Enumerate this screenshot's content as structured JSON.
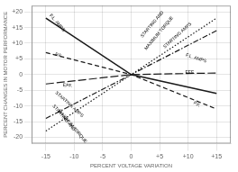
{
  "chart_data": {
    "type": "line",
    "xlabel": "PERCENT VOLTAGE VARIATION",
    "ylabel": "PERCENT CHANGES IN MOTOR PERFORMANCE",
    "x": [
      -15,
      0,
      15
    ],
    "series": [
      {
        "color": "#1a1a1a",
        "line_style": "solid",
        "values": [
          18,
          0,
          -6
        ]
      },
      {
        "color": "#1a1a1a",
        "line_style": "dashdot",
        "values": [
          -14,
          0,
          14
        ]
      },
      {
        "color": "#1a1a1a",
        "line_style": "dotted",
        "values": [
          -18,
          0,
          18
        ]
      },
      {
        "color": "#1a1a1a",
        "line_style": "dashed",
        "values": [
          7,
          0,
          -11
        ]
      },
      {
        "color": "#1a1a1a",
        "line_style": "longdash",
        "values": [
          -3,
          0,
          0.5
        ]
      }
    ],
    "xlim": [
      -17.5,
      17.5
    ],
    "ylim": [
      -22,
      22
    ],
    "xticks": [
      -15,
      -10,
      -5,
      0,
      {
        "value": 5,
        "label": "+5"
      },
      {
        "value": 10,
        "label": "+10"
      },
      {
        "value": 15,
        "label": "+15"
      }
    ],
    "yticks": [
      -20,
      -15,
      -10,
      -5,
      0,
      {
        "value": 5,
        "label": "+5"
      },
      {
        "value": 10,
        "label": "+10"
      },
      {
        "value": 15,
        "label": "+15"
      },
      {
        "value": 20,
        "label": "+20"
      }
    ],
    "grid": true,
    "annotations": [
      {
        "text": "F.L. AMPS",
        "x": -14.5,
        "y": 16.5
      },
      {
        "text": "P.F.",
        "x": -13.5,
        "y": 6.2
      },
      {
        "text": "EFF.",
        "x": -12.0,
        "y": -3.5
      },
      {
        "text": "STARTING AMPS",
        "x": -13.5,
        "y": -9.5
      },
      {
        "text": "STARTING AND",
        "x": -14.0,
        "y": -13.8
      },
      {
        "text": "MAXIMUM TORQUE",
        "x": -13.0,
        "y": -16.5
      },
      {
        "text": "STARTING AND",
        "x": 1.5,
        "y": 16.0
      },
      {
        "text": "MAXIMUM TORQUE",
        "x": 2.2,
        "y": 13.2
      },
      {
        "text": "STARTING AMPS",
        "x": 5.5,
        "y": 12.5
      },
      {
        "text": "F.L. AMPS",
        "x": 9.5,
        "y": 5.2
      },
      {
        "text": "EFF.",
        "x": 9.5,
        "y": 0.5
      },
      {
        "text": "P.F.",
        "x": 10.8,
        "y": -9.5
      }
    ]
  }
}
